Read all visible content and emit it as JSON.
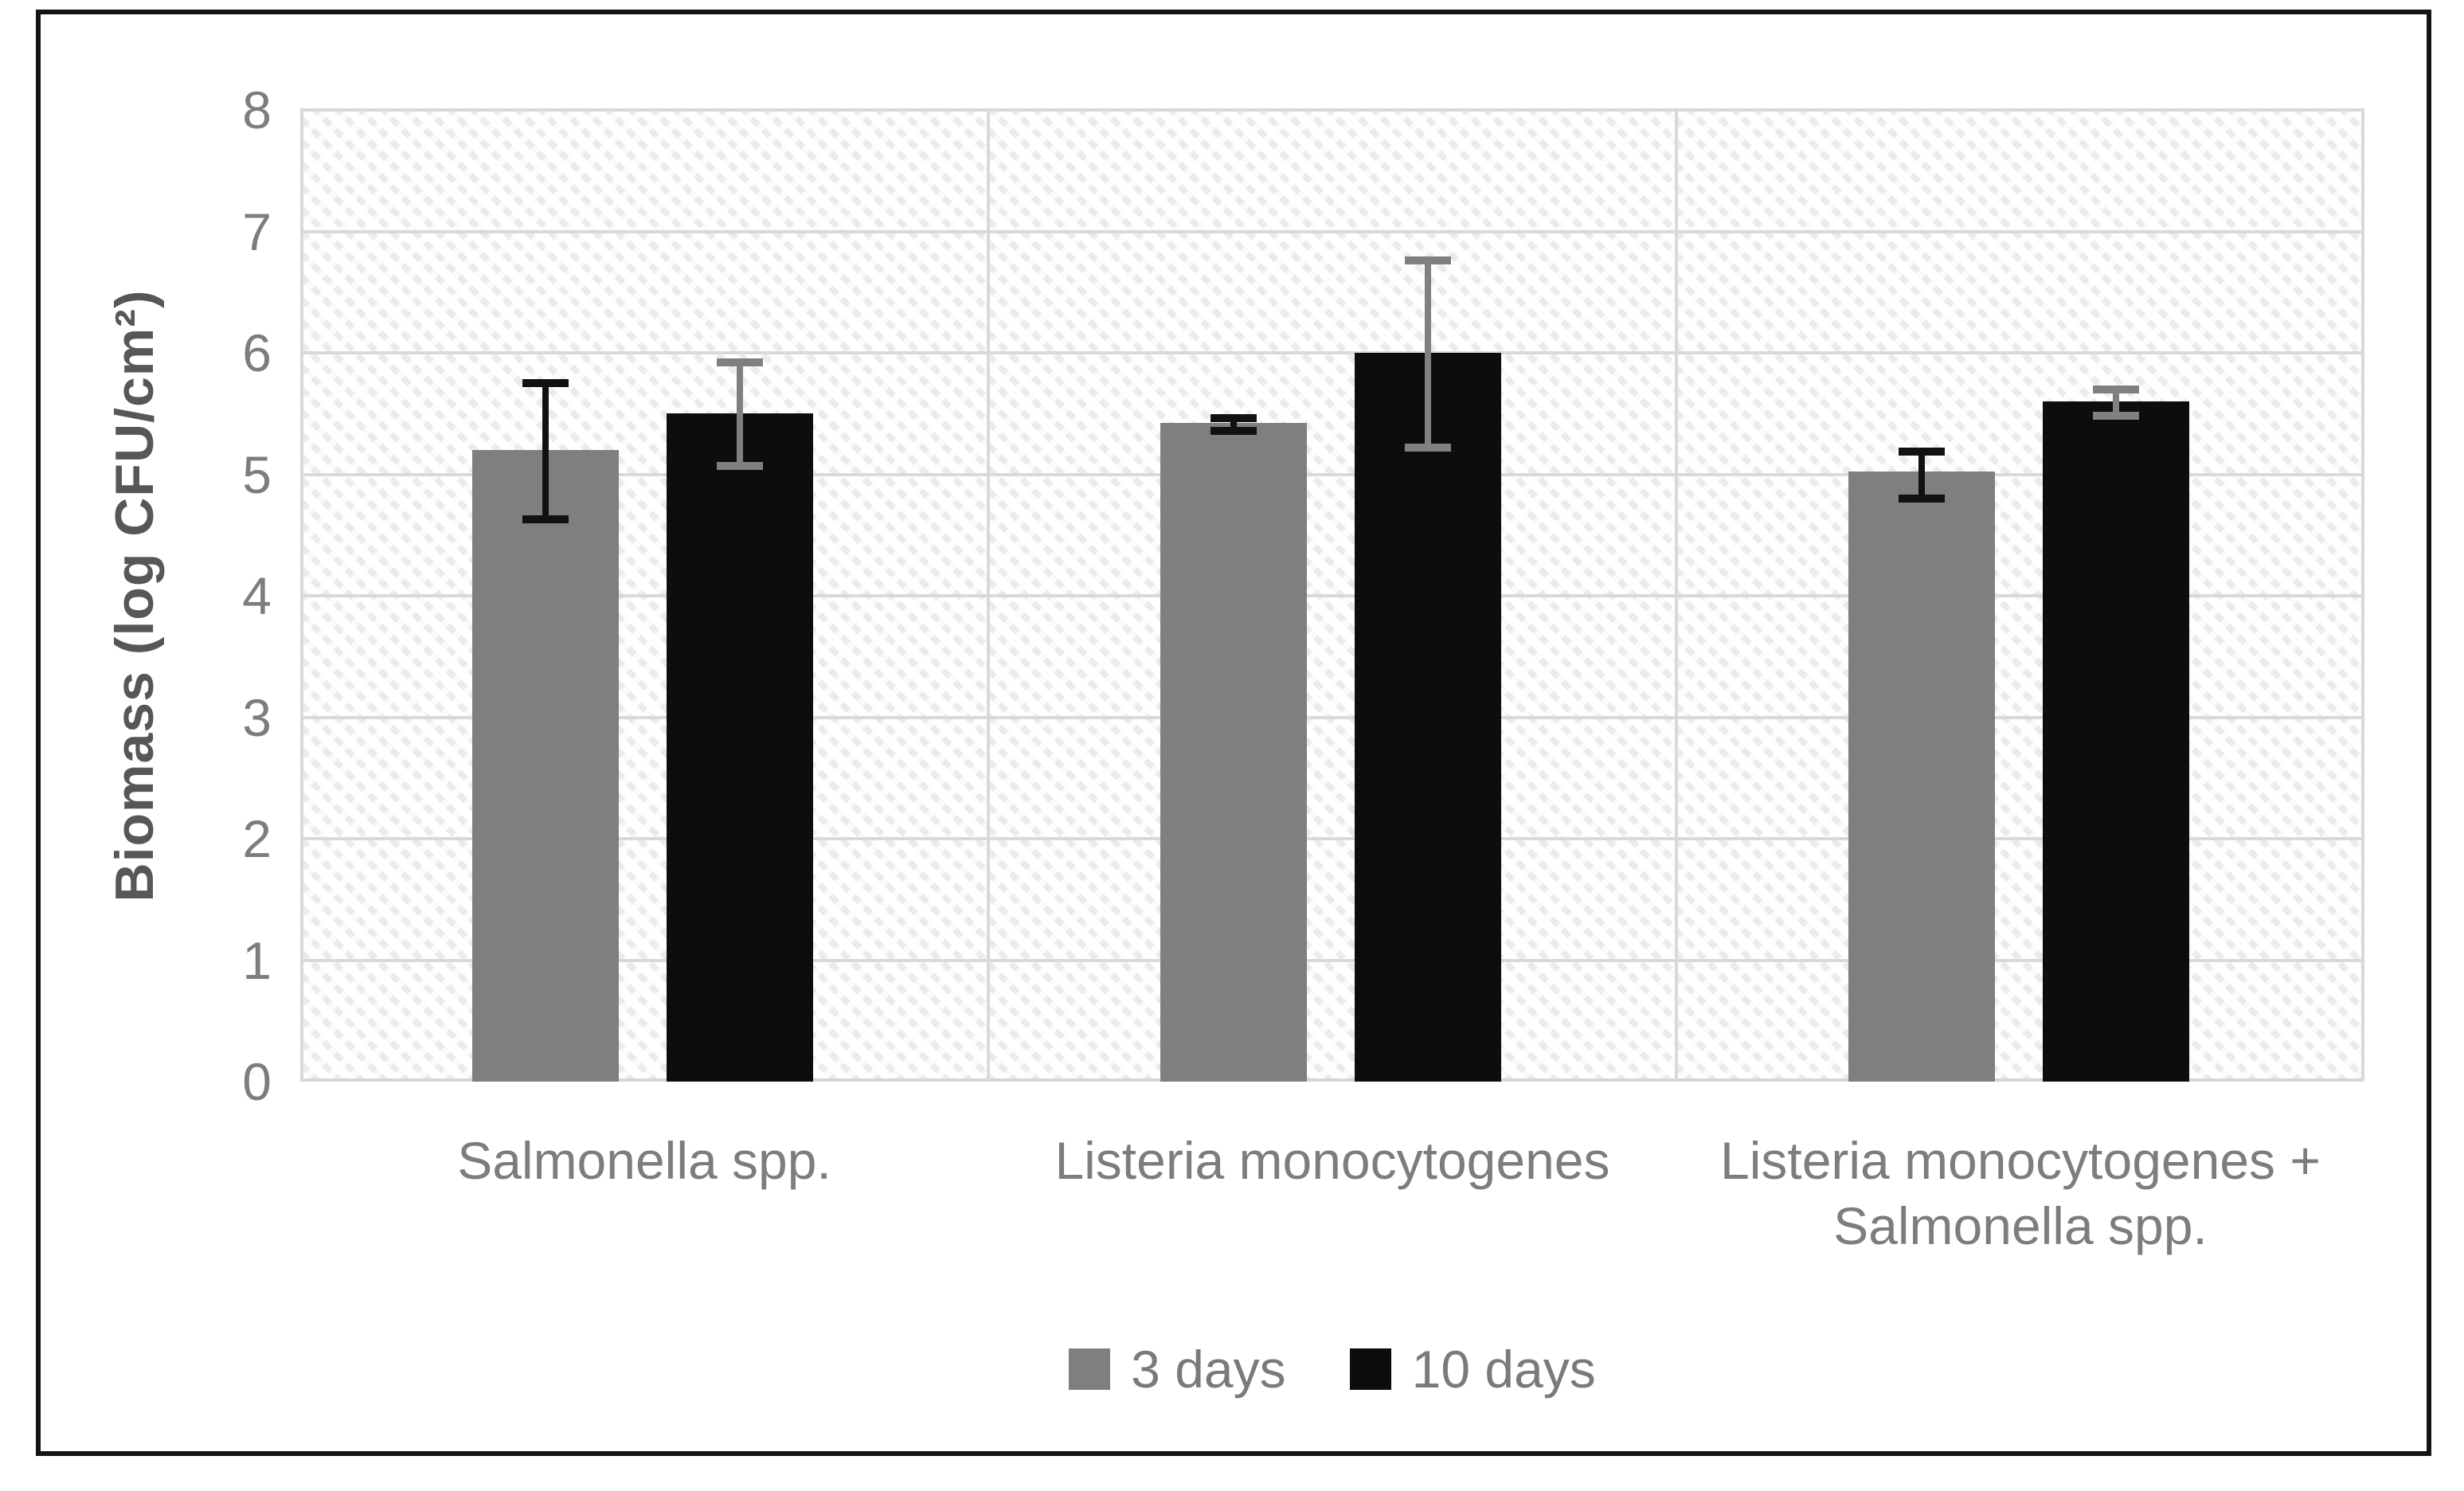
{
  "figure": {
    "background": "#ffffff",
    "frame_border_color": "#141414"
  },
  "chart_data": {
    "type": "bar",
    "title": "",
    "xlabel": "",
    "ylabel": "Biomass (log CFU/cm²)",
    "ylim": [
      0,
      8
    ],
    "yticks": [
      0,
      1,
      2,
      3,
      4,
      5,
      6,
      7,
      8
    ],
    "grid": "horizontal major gridlines every 1 unit; vertical separators between categories; hatched plot background",
    "legend_position": "bottom-center",
    "categories": [
      "Salmonella spp.",
      "Listeria monocytogenes",
      "Listeria monocytogenes + Salmonella spp."
    ],
    "series": [
      {
        "name": "3 days",
        "color": "#7F7F7F",
        "error_color": "#111111",
        "values": [
          5.2,
          5.42,
          5.02
        ],
        "error_plus": [
          0.55,
          0.04,
          0.17
        ],
        "error_minus": [
          0.57,
          0.06,
          0.22
        ]
      },
      {
        "name": "10 days",
        "color": "#0D0D0D",
        "error_color": "#808080",
        "values": [
          5.5,
          6.0,
          5.6
        ],
        "error_plus": [
          0.42,
          0.76,
          0.1
        ],
        "error_minus": [
          0.43,
          0.78,
          0.12
        ]
      }
    ],
    "gridline_color": "#d9d9d9",
    "tick_label_color": "#7d7d7d",
    "axis_title_color": "#575757"
  },
  "legend": {
    "items": [
      {
        "label": "3 days",
        "color": "#7F7F7F"
      },
      {
        "label": "10 days",
        "color": "#0D0D0D"
      }
    ]
  }
}
